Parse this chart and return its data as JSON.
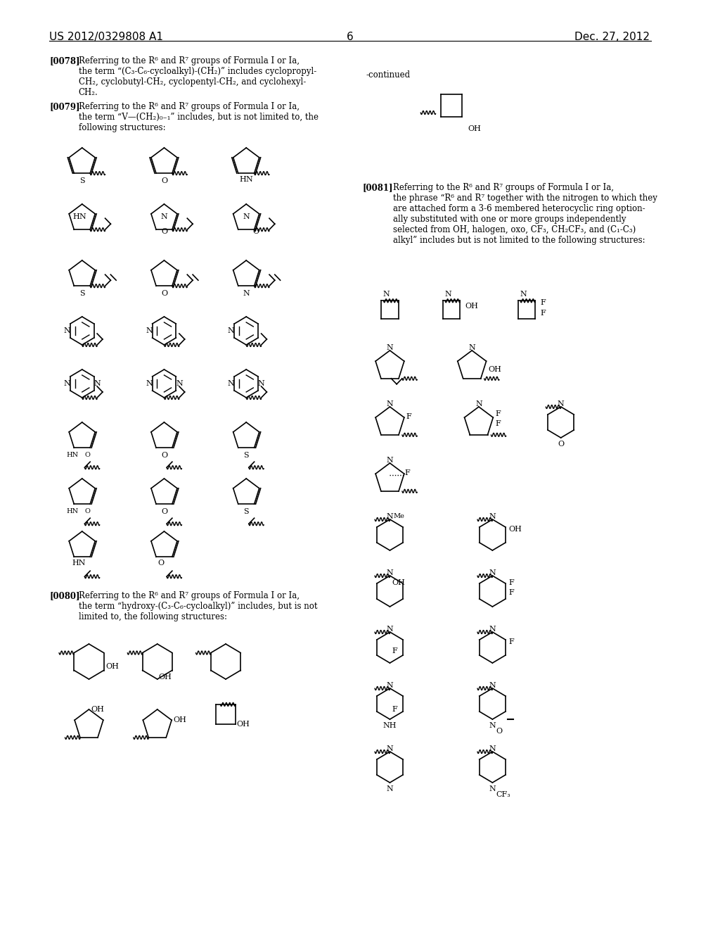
{
  "patent_number": "US 2012/0329808 A1",
  "date": "Dec. 27, 2012",
  "page_number": "6",
  "continued": "-continued",
  "background_color": "#ffffff",
  "text_color": "#000000",
  "para_0078_bold": "[0078]",
  "para_0078_text": "Referring to the R⁶ and R⁷ groups of Formula I or Ia, the term “(C₃-C₆-cycloalkyl)-(CH₂)” includes cyclopropyl-CH₂, cyclobutyl-CH₂, cyclopentyl-CH₂, and cyclohexyl-CH₂.",
  "para_0079_bold": "[0079]",
  "para_0079_text": "Referring to the R⁶ and R⁷ groups of Formula I or Ia, the term “V—(CH₂)₀₋₁” includes, but is not limited to, the following structures:",
  "para_0080_bold": "[0080]",
  "para_0080_text": "Referring to the R⁶ and R⁷ groups of Formula I or Ia, the term “hydroxy-(C₃-C₆-cycloalkyl)” includes, but is not limited to, the following structures:",
  "para_0081_bold": "[0081]",
  "para_0081_text": "Referring to the R⁶ and R⁷ groups of Formula I or Ia, the phrase “R⁶ and R⁷ together with the nitrogen to which they are attached form a 3-6 membered heterocyclic ring optionally substituted with one or more groups independently selected from OH, halogen, oxo, CF₃, CH₂CF₃, and (C₁-C₃) alkyl” includes but is not limited to the following structures:"
}
